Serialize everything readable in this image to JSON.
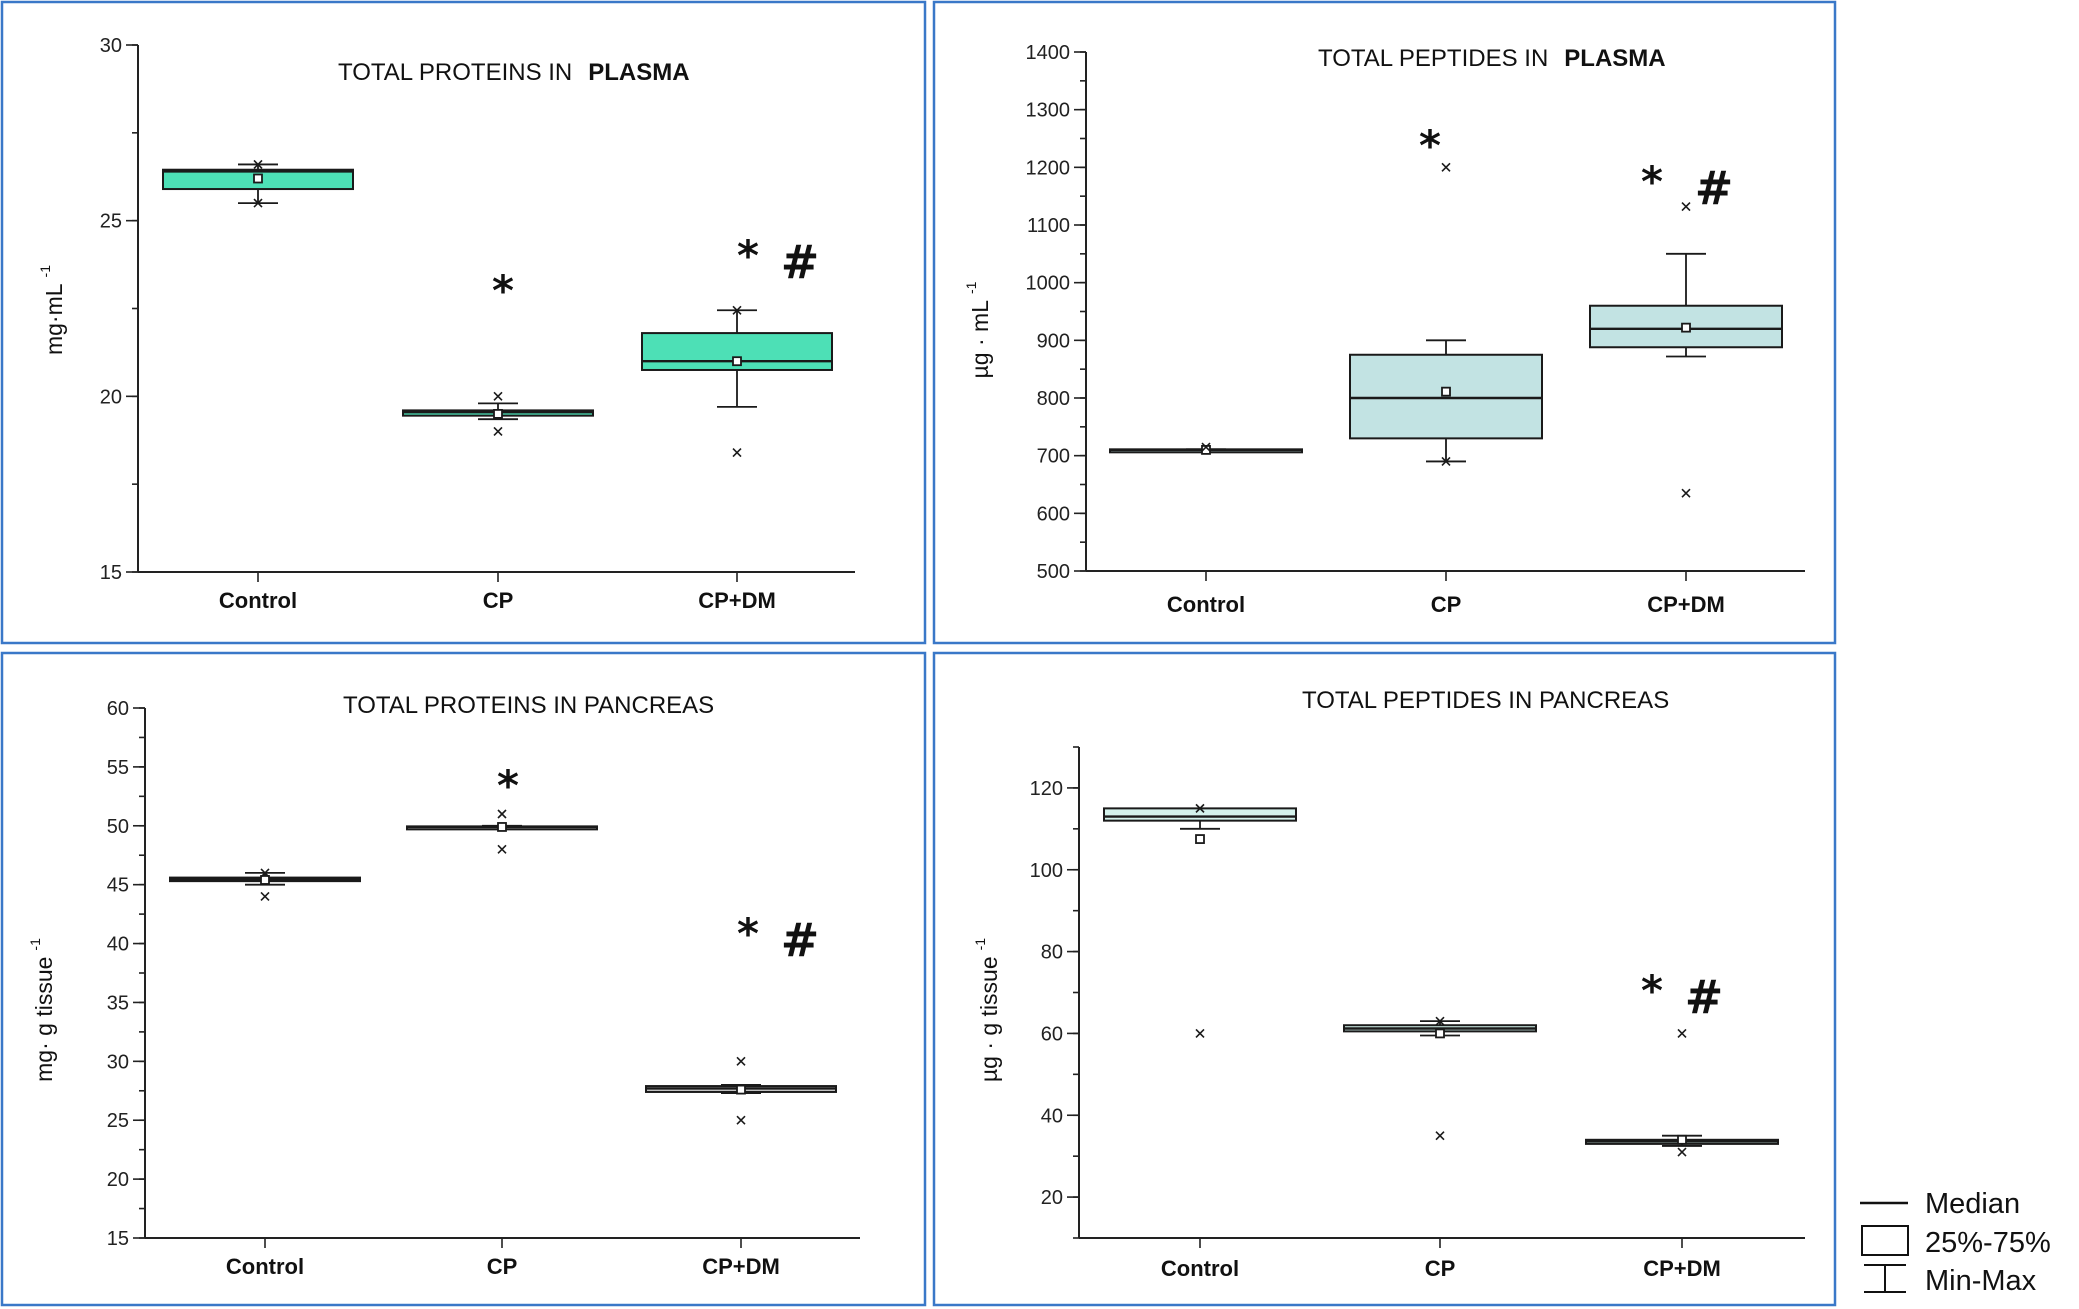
{
  "legend": {
    "items": [
      {
        "symbol": "line",
        "label": "Median"
      },
      {
        "symbol": "box",
        "label": "25%-75%"
      },
      {
        "symbol": "whisker",
        "label": "Min-Max"
      }
    ]
  },
  "chart_data": [
    {
      "type": "box",
      "title": "TOTAL PROTEINS IN",
      "title_bold": "PLASMA",
      "xlabel": "",
      "ylabel": "mg·mL",
      "ylabel_sup": "-1",
      "ylim": [
        15,
        30
      ],
      "yticks": [
        15,
        20,
        25,
        30
      ],
      "minor_step": 2.5,
      "categories": [
        "Control",
        "CP",
        "CP+DM"
      ],
      "box_color": "#4de0b6",
      "groups": [
        {
          "category": "Control",
          "q1": 25.9,
          "median": 26.4,
          "q3": 26.45,
          "mean": 26.2,
          "min": 25.5,
          "max": 26.6,
          "outliers": [
            25.5,
            26.6
          ],
          "significance": ""
        },
        {
          "category": "CP",
          "q1": 19.45,
          "median": 19.55,
          "q3": 19.6,
          "mean": 19.5,
          "min": 19.35,
          "max": 19.8,
          "outliers": [
            20.0,
            19.0
          ],
          "significance": "*"
        },
        {
          "category": "CP+DM",
          "q1": 20.75,
          "median": 21.0,
          "q3": 21.8,
          "mean": 21.0,
          "min": 19.7,
          "max": 22.45,
          "outliers": [
            22.45,
            18.4
          ],
          "significance": "* #"
        }
      ]
    },
    {
      "type": "box",
      "title": "TOTAL PEPTIDES IN",
      "title_bold": "PLASMA",
      "xlabel": "",
      "ylabel": "µg · mL",
      "ylabel_sup": "-1",
      "ylim": [
        500,
        1400
      ],
      "yticks": [
        500,
        600,
        700,
        800,
        900,
        1000,
        1100,
        1200,
        1300,
        1400
      ],
      "minor_step": 50,
      "categories": [
        "Control",
        "CP",
        "CP+DM"
      ],
      "box_color": "#c2e3e3",
      "groups": [
        {
          "category": "Control",
          "q1": 709,
          "median": 710,
          "q3": 711,
          "mean": 710,
          "min": 709,
          "max": 711,
          "outliers": [
            715
          ],
          "significance": ""
        },
        {
          "category": "CP",
          "q1": 730,
          "median": 800,
          "q3": 875,
          "mean": 811,
          "min": 690,
          "max": 900,
          "outliers": [
            1200,
            690
          ],
          "significance": "*"
        },
        {
          "category": "CP+DM",
          "q1": 888,
          "median": 920,
          "q3": 960,
          "mean": 922,
          "min": 872,
          "max": 1050,
          "outliers": [
            1132,
            635
          ],
          "significance": "*   #"
        }
      ]
    },
    {
      "type": "box",
      "title": "TOTAL PROTEINS IN PANCREAS",
      "title_bold": "",
      "xlabel": "",
      "ylabel": "mg· g tissue",
      "ylabel_sup": "-1",
      "ylim": [
        15,
        60
      ],
      "yticks": [
        15,
        20,
        25,
        30,
        35,
        40,
        45,
        50,
        55,
        60
      ],
      "minor_step": 2.5,
      "categories": [
        "Control",
        "CP",
        "CP+DM"
      ],
      "box_color": "#c8c8c8",
      "groups": [
        {
          "category": "Control",
          "q1": 45.3,
          "median": 45.45,
          "q3": 45.6,
          "mean": 45.4,
          "min": 45.0,
          "max": 46.0,
          "outliers": [
            46.0,
            44.0
          ],
          "significance": ""
        },
        {
          "category": "CP",
          "q1": 49.85,
          "median": 49.9,
          "q3": 49.95,
          "mean": 49.9,
          "min": 49.8,
          "max": 50.0,
          "outliers": [
            51.0,
            48.0
          ],
          "significance": "*"
        },
        {
          "category": "CP+DM",
          "q1": 27.4,
          "median": 27.7,
          "q3": 27.9,
          "mean": 27.6,
          "min": 27.3,
          "max": 28.0,
          "outliers": [
            30.0,
            25.0
          ],
          "significance": "* #"
        }
      ]
    },
    {
      "type": "box",
      "title": "TOTAL PEPTIDES IN PANCREAS",
      "title_bold": "",
      "xlabel": "",
      "ylabel": "µg · g tissue",
      "ylabel_sup": "-1",
      "ylim": [
        10,
        130
      ],
      "yticks": [
        20,
        40,
        60,
        80,
        100,
        120
      ],
      "minor_step": 10,
      "categories": [
        "Control",
        "CP",
        "CP+DM"
      ],
      "box_color": "#d4f2ec",
      "groups": [
        {
          "category": "Control",
          "q1": 112.0,
          "median": 113.0,
          "q3": 115.0,
          "mean": 107.5,
          "min": 110.0,
          "max": 115.0,
          "outliers": [
            115.0,
            60.0
          ],
          "significance": ""
        },
        {
          "category": "CP",
          "q1": 60.5,
          "median": 61.2,
          "q3": 62.0,
          "mean": 60.0,
          "min": 59.5,
          "max": 63.0,
          "outliers": [
            63.0,
            35.0
          ],
          "significance": ""
        },
        {
          "category": "CP+DM",
          "q1": 33.0,
          "median": 33.6,
          "q3": 34.0,
          "mean": 34.0,
          "min": 32.5,
          "max": 35.0,
          "outliers": [
            60.0,
            31.0
          ],
          "significance": "* #"
        }
      ]
    }
  ]
}
